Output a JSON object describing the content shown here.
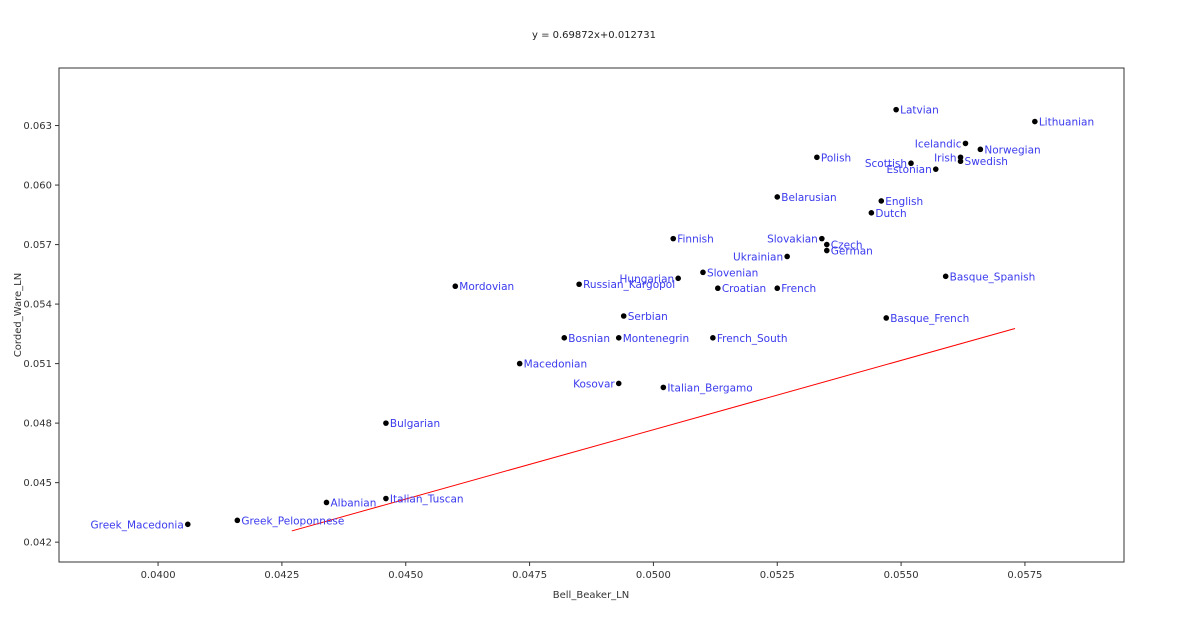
{
  "chart_data": {
    "type": "scatter",
    "title": "y = 0.69872x+0.012731",
    "xlabel": "Bell_Beaker_LN",
    "ylabel": "Corded_Ware_LN",
    "xlim": [
      0.038,
      0.0595
    ],
    "ylim": [
      0.041,
      0.0659
    ],
    "xticks": [
      "0.0400",
      "0.0425",
      "0.0450",
      "0.0475",
      "0.0500",
      "0.0525",
      "0.0550",
      "0.0575"
    ],
    "yticks": [
      "0.042",
      "0.045",
      "0.048",
      "0.051",
      "0.054",
      "0.057",
      "0.060",
      "0.063"
    ],
    "grid": false,
    "trendline": {
      "slope": 0.69872,
      "intercept": 0.012731,
      "x_range": [
        0.0427,
        0.0573
      ],
      "color": "#ff0000"
    },
    "point_color": "#000000",
    "label_color": "#3a3aee",
    "points": [
      {
        "label": "Latvian",
        "x": 0.0549,
        "y": 0.0638,
        "anchor": "start"
      },
      {
        "label": "Lithuanian",
        "x": 0.0577,
        "y": 0.0632,
        "anchor": "start"
      },
      {
        "label": "Icelandic",
        "x": 0.0563,
        "y": 0.0621,
        "anchor": "end"
      },
      {
        "label": "Norwegian",
        "x": 0.0566,
        "y": 0.0618,
        "anchor": "start"
      },
      {
        "label": "Irish",
        "x": 0.0562,
        "y": 0.0614,
        "anchor": "end"
      },
      {
        "label": "Swedish",
        "x": 0.0562,
        "y": 0.0612,
        "anchor": "start"
      },
      {
        "label": "Scottish",
        "x": 0.0552,
        "y": 0.0611,
        "anchor": "end"
      },
      {
        "label": "Estonian",
        "x": 0.0557,
        "y": 0.0608,
        "anchor": "end"
      },
      {
        "label": "Polish",
        "x": 0.0533,
        "y": 0.0614,
        "anchor": "start"
      },
      {
        "label": "Belarusian",
        "x": 0.0525,
        "y": 0.0594,
        "anchor": "start"
      },
      {
        "label": "English",
        "x": 0.0546,
        "y": 0.0592,
        "anchor": "start"
      },
      {
        "label": "Dutch",
        "x": 0.0544,
        "y": 0.0586,
        "anchor": "start"
      },
      {
        "label": "Slovakian",
        "x": 0.0534,
        "y": 0.0573,
        "anchor": "end"
      },
      {
        "label": "Czech",
        "x": 0.0535,
        "y": 0.057,
        "anchor": "start"
      },
      {
        "label": "German",
        "x": 0.0535,
        "y": 0.0567,
        "anchor": "start"
      },
      {
        "label": "Ukrainian",
        "x": 0.0527,
        "y": 0.0564,
        "anchor": "end"
      },
      {
        "label": "Finnish",
        "x": 0.0504,
        "y": 0.0573,
        "anchor": "start"
      },
      {
        "label": "Slovenian",
        "x": 0.051,
        "y": 0.0556,
        "anchor": "start"
      },
      {
        "label": "Hungarian",
        "x": 0.0505,
        "y": 0.0553,
        "anchor": "end"
      },
      {
        "label": "Russian_Kargopol",
        "x": 0.0485,
        "y": 0.055,
        "anchor": "start"
      },
      {
        "label": "Croatian",
        "x": 0.0513,
        "y": 0.0548,
        "anchor": "start"
      },
      {
        "label": "French",
        "x": 0.0525,
        "y": 0.0548,
        "anchor": "start"
      },
      {
        "label": "Mordovian",
        "x": 0.046,
        "y": 0.0549,
        "anchor": "start"
      },
      {
        "label": "Basque_Spanish",
        "x": 0.0559,
        "y": 0.0554,
        "anchor": "start"
      },
      {
        "label": "Serbian",
        "x": 0.0494,
        "y": 0.0534,
        "anchor": "start"
      },
      {
        "label": "Basque_French",
        "x": 0.0547,
        "y": 0.0533,
        "anchor": "start"
      },
      {
        "label": "Bosnian",
        "x": 0.0482,
        "y": 0.0523,
        "anchor": "start"
      },
      {
        "label": "Montenegrin",
        "x": 0.0493,
        "y": 0.0523,
        "anchor": "start"
      },
      {
        "label": "French_South",
        "x": 0.0512,
        "y": 0.0523,
        "anchor": "start"
      },
      {
        "label": "Macedonian",
        "x": 0.0473,
        "y": 0.051,
        "anchor": "start"
      },
      {
        "label": "Kosovar",
        "x": 0.0493,
        "y": 0.05,
        "anchor": "end"
      },
      {
        "label": "Italian_Bergamo",
        "x": 0.0502,
        "y": 0.0498,
        "anchor": "start"
      },
      {
        "label": "Bulgarian",
        "x": 0.0446,
        "y": 0.048,
        "anchor": "start"
      },
      {
        "label": "Italian_Tuscan",
        "x": 0.0446,
        "y": 0.0442,
        "anchor": "start"
      },
      {
        "label": "Albanian",
        "x": 0.0434,
        "y": 0.044,
        "anchor": "start"
      },
      {
        "label": "Greek_Peloponnese",
        "x": 0.0416,
        "y": 0.0431,
        "anchor": "start"
      },
      {
        "label": "Greek_Macedonia",
        "x": 0.0406,
        "y": 0.0429,
        "anchor": "end"
      }
    ]
  }
}
